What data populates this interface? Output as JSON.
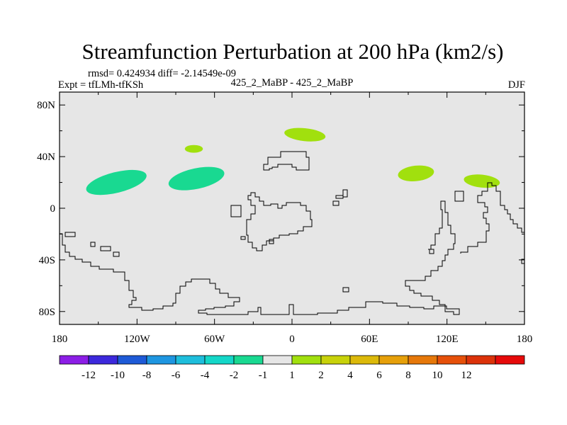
{
  "title": "Streamfunction Perturbation at 200 hPa (km2/s)",
  "stats": "rmsd= 0.424934 diff= -2.14549e-09",
  "expt": "Expt = tfLMh-tfKSh",
  "case": "425_2_MaBP - 425_2_MaBP",
  "season": "DJF",
  "map_data": {
    "type": "contour-map",
    "lon_range": [
      -180,
      180
    ],
    "lat_range": [
      -90,
      90
    ],
    "lat_ticks": [
      {
        "value": 80,
        "label": "80N"
      },
      {
        "value": 40,
        "label": "40N"
      },
      {
        "value": 0,
        "label": "0"
      },
      {
        "value": -40,
        "label": "40S"
      },
      {
        "value": -80,
        "label": "80S"
      }
    ],
    "lon_ticks": [
      {
        "value": -180,
        "label": "180"
      },
      {
        "value": -120,
        "label": "120W"
      },
      {
        "value": -60,
        "label": "60W"
      },
      {
        "value": 0,
        "label": "0"
      },
      {
        "value": 60,
        "label": "60E"
      },
      {
        "value": 120,
        "label": "120E"
      },
      {
        "value": 180,
        "label": "180"
      }
    ],
    "background_color": "#e6e6e6",
    "anomalies": [
      {
        "name": "anomaly-negative-1",
        "lon": -136,
        "lat": 20,
        "rlon": 24,
        "rlat": 8,
        "rot": -14,
        "color": "#19d991"
      },
      {
        "name": "anomaly-negative-2",
        "lon": -74,
        "lat": 23,
        "rlon": 22,
        "rlat": 8,
        "rot": -12,
        "color": "#19d991"
      },
      {
        "name": "anomaly-positive-1",
        "lon": -76,
        "lat": 46,
        "rlon": 7,
        "rlat": 3,
        "rot": 0,
        "color": "#a1e00e"
      },
      {
        "name": "anomaly-positive-2",
        "lon": 10,
        "lat": 57,
        "rlon": 16,
        "rlat": 5,
        "rot": 6,
        "color": "#a1e00e"
      },
      {
        "name": "anomaly-positive-3",
        "lon": 96,
        "lat": 27,
        "rlon": 14,
        "rlat": 6,
        "rot": -6,
        "color": "#a1e00e"
      },
      {
        "name": "anomaly-positive-4",
        "lon": 147,
        "lat": 21,
        "rlon": 14,
        "rlat": 5,
        "rot": 6,
        "color": "#a1e00e"
      }
    ]
  },
  "colorbar": {
    "colors": [
      "#8c1ee6",
      "#3c28dc",
      "#1e5ad7",
      "#1e96e1",
      "#1ebedc",
      "#14d7c8",
      "#19d991",
      "#e6e6e6",
      "#a1e00e",
      "#c8d20a",
      "#dcb90a",
      "#e6a00a",
      "#e6780a",
      "#e6500a",
      "#dc320a",
      "#e60a0a"
    ],
    "labels": [
      "-12",
      "-10",
      "-8",
      "-6",
      "-4",
      "-2",
      "-1",
      "1",
      "2",
      "4",
      "6",
      "8",
      "10",
      "12"
    ]
  }
}
